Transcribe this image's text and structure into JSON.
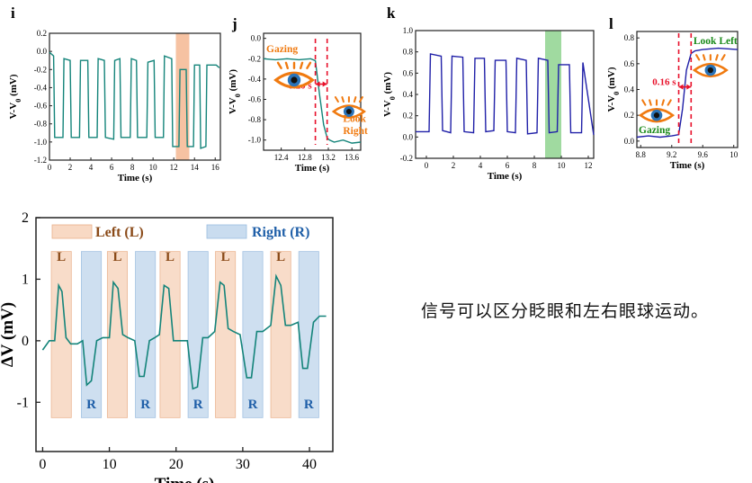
{
  "caption": "信号可以区分眨眼和左右眼球运动。",
  "colors": {
    "teal": "#14847a",
    "navy": "#2020a8",
    "orange_band": "#f5b792",
    "green_band": "#8fd38f",
    "left_box": "#f8d9c4",
    "right_box": "#c9dcef",
    "red": "#e8102a",
    "eye_orange": "#f07a10",
    "left_label": "#8a4a18",
    "right_label": "#1f5fa8",
    "green_text": "#1a8a1a"
  },
  "chart_data": [
    {
      "id": "i",
      "panel_label": "i",
      "type": "line",
      "xlabel": "Time (s)",
      "ylabel": "V-V0 (mV)",
      "xlim": [
        0,
        16.5
      ],
      "ylim": [
        -1.2,
        0.2
      ],
      "xticks": [
        0,
        2,
        4,
        6,
        8,
        10,
        12,
        14,
        16
      ],
      "yticks": [
        0.2,
        0.0,
        -0.2,
        -0.4,
        -0.6,
        -0.8,
        -1.0,
        -1.2
      ],
      "yticklabels": [
        "0.2",
        "0.0",
        "-0.2",
        "-0.4",
        "-0.6",
        "-0.8",
        "-1.0",
        "-1.2"
      ],
      "highlight": [
        12.2,
        13.5
      ],
      "series": [
        {
          "x": [
            0,
            0.4,
            0.5,
            1.3,
            1.4,
            2.0,
            2.1,
            2.9,
            3.0,
            3.7,
            3.8,
            4.6,
            4.7,
            5.3,
            5.4,
            6.2,
            6.3,
            6.8,
            6.9,
            7.8,
            7.9,
            8.4,
            8.5,
            9.4,
            9.5,
            10.1,
            10.2,
            11.0,
            11.1,
            11.8,
            11.9,
            12.5,
            12.6,
            13.2,
            13.3,
            13.9,
            14.0,
            14.5,
            14.6,
            15.1,
            15.2,
            16.0,
            16.1,
            16.4
          ],
          "y": [
            -0.01,
            -0.05,
            -0.95,
            -0.95,
            -0.08,
            -0.1,
            -0.95,
            -0.95,
            -0.1,
            -0.1,
            -0.95,
            -0.95,
            -0.08,
            -0.1,
            -0.95,
            -0.97,
            -0.1,
            -0.08,
            -0.95,
            -0.95,
            -0.08,
            -0.1,
            -0.95,
            -0.95,
            -0.12,
            -0.1,
            -0.95,
            -0.95,
            -0.05,
            -0.08,
            -1.05,
            -1.05,
            -0.2,
            -0.2,
            -1.05,
            -1.05,
            -0.15,
            -0.15,
            -1.07,
            -1.05,
            -0.15,
            -0.15,
            -0.15,
            -0.18
          ]
        }
      ]
    },
    {
      "id": "j",
      "panel_label": "j",
      "type": "line",
      "xlabel": "Time (s)",
      "ylabel": "V-V0 (mV)",
      "xlim": [
        12.1,
        13.75
      ],
      "ylim": [
        -1.1,
        0.05
      ],
      "xticks": [
        12.4,
        12.8,
        13.2,
        13.6
      ],
      "yticks": [
        0.0,
        -0.2,
        -0.4,
        -0.6,
        -0.8,
        -1.0
      ],
      "yticklabels": [
        "0.0",
        "-0.2",
        "-0.4",
        "-0.6",
        "-0.8",
        "-1.0"
      ],
      "markers": [
        12.98,
        13.18
      ],
      "duration_label": "0.20 s",
      "state_start": "Gazing",
      "state_end": "Look Right",
      "series": [
        {
          "x": [
            12.1,
            12.3,
            12.5,
            12.7,
            12.9,
            12.98,
            13.05,
            13.12,
            13.18,
            13.22,
            13.3,
            13.45,
            13.6,
            13.75
          ],
          "y": [
            -0.2,
            -0.21,
            -0.2,
            -0.21,
            -0.2,
            -0.22,
            -0.55,
            -0.85,
            -0.98,
            -1.0,
            -1.02,
            -1.0,
            -1.03,
            -1.02
          ]
        }
      ]
    },
    {
      "id": "k",
      "panel_label": "k",
      "type": "line",
      "xlabel": "Time (s)",
      "ylabel": "V-V0 (mV)",
      "xlim": [
        -0.8,
        12.4
      ],
      "ylim": [
        -0.2,
        1.0
      ],
      "xticks": [
        0,
        2,
        4,
        6,
        8,
        10,
        12
      ],
      "yticks": [
        1.0,
        0.8,
        0.6,
        0.4,
        0.2,
        0.0,
        -0.2
      ],
      "yticklabels": [
        "1.0",
        "0.8",
        "0.6",
        "0.4",
        "0.2",
        "0.0",
        "-0.2"
      ],
      "highlight": [
        8.8,
        10.0
      ],
      "series": [
        {
          "x": [
            -0.8,
            0.2,
            0.3,
            1.1,
            1.2,
            1.8,
            1.9,
            2.7,
            2.8,
            3.5,
            3.6,
            4.3,
            4.4,
            5.0,
            5.1,
            5.9,
            6.0,
            6.6,
            6.7,
            7.4,
            7.5,
            8.2,
            8.3,
            9.0,
            9.1,
            9.7,
            9.8,
            10.6,
            10.7,
            11.5,
            11.6,
            12.4
          ],
          "y": [
            0.05,
            0.05,
            0.78,
            0.76,
            0.06,
            0.04,
            0.76,
            0.75,
            0.05,
            0.04,
            0.74,
            0.74,
            0.05,
            0.06,
            0.72,
            0.72,
            0.05,
            0.04,
            0.74,
            0.72,
            0.03,
            0.04,
            0.74,
            0.72,
            0.04,
            0.05,
            0.68,
            0.68,
            0.04,
            0.04,
            0.7,
            0.02
          ]
        }
      ]
    },
    {
      "id": "l",
      "panel_label": "l",
      "type": "line",
      "xlabel": "Time (s)",
      "ylabel": "V-V0 (mV)",
      "xlim": [
        8.75,
        10.05
      ],
      "ylim": [
        -0.05,
        0.85
      ],
      "xticks": [
        8.8,
        9.2,
        9.6,
        10.0
      ],
      "yticks": [
        0.0,
        0.2,
        0.4,
        0.6,
        0.8
      ],
      "yticklabels": [
        "0.0",
        "0.2",
        "0.4",
        "0.6",
        "0.8"
      ],
      "markers": [
        9.29,
        9.45
      ],
      "duration_label": "0.16 s",
      "state_start": "Gazing",
      "state_end": "Look Left",
      "series": [
        {
          "x": [
            8.75,
            8.9,
            9.05,
            9.2,
            9.29,
            9.34,
            9.39,
            9.45,
            9.5,
            9.6,
            9.8,
            10.05
          ],
          "y": [
            0.03,
            0.04,
            0.03,
            0.04,
            0.05,
            0.25,
            0.55,
            0.68,
            0.7,
            0.71,
            0.72,
            0.71
          ]
        }
      ]
    },
    {
      "id": "main",
      "type": "line",
      "xlabel": "Time (s)",
      "ylabel": "ΔV (mV)",
      "xlim": [
        -1,
        43.5
      ],
      "ylim": [
        -1.8,
        2.0
      ],
      "xticks": [
        0,
        10,
        20,
        30,
        40
      ],
      "yticks": [
        2,
        1,
        0,
        -1
      ],
      "yticklabels": [
        "2",
        "1",
        "0",
        "-1"
      ],
      "legend": [
        {
          "label": "Left (L)",
          "kind": "left"
        },
        {
          "label": "Right (R)",
          "kind": "right"
        }
      ],
      "boxes": [
        {
          "x0": 1.3,
          "x1": 4.3,
          "kind": "left",
          "label": "L"
        },
        {
          "x0": 5.8,
          "x1": 8.8,
          "kind": "right",
          "label": "R"
        },
        {
          "x0": 9.7,
          "x1": 12.7,
          "kind": "left",
          "label": "L"
        },
        {
          "x0": 13.9,
          "x1": 16.9,
          "kind": "right",
          "label": "R"
        },
        {
          "x0": 17.6,
          "x1": 20.6,
          "kind": "left",
          "label": "L"
        },
        {
          "x0": 21.8,
          "x1": 24.8,
          "kind": "right",
          "label": "R"
        },
        {
          "x0": 25.9,
          "x1": 28.9,
          "kind": "left",
          "label": "L"
        },
        {
          "x0": 30.0,
          "x1": 33.0,
          "kind": "right",
          "label": "R"
        },
        {
          "x0": 34.2,
          "x1": 37.2,
          "kind": "left",
          "label": "L"
        },
        {
          "x0": 38.4,
          "x1": 41.4,
          "kind": "right",
          "label": "R"
        }
      ],
      "series": [
        {
          "x": [
            0,
            1,
            1.8,
            2.4,
            2.9,
            3.5,
            4.2,
            5.2,
            6.0,
            6.6,
            7.3,
            8.1,
            9.0,
            10.0,
            10.6,
            11.3,
            12.0,
            12.8,
            13.8,
            14.5,
            15.2,
            16.0,
            16.8,
            17.5,
            18.2,
            18.9,
            19.6,
            20.6,
            21.7,
            22.5,
            23.2,
            24.0,
            24.8,
            25.8,
            26.6,
            27.2,
            27.8,
            28.6,
            29.6,
            30.6,
            31.3,
            32.1,
            33.0,
            34.2,
            35.0,
            35.7,
            36.4,
            37.2,
            38.3,
            39.0,
            39.7,
            40.6,
            41.5,
            42.5
          ],
          "y": [
            -0.15,
            0.0,
            0.0,
            0.9,
            0.8,
            0.05,
            -0.05,
            -0.05,
            0.0,
            -0.72,
            -0.65,
            0.0,
            0.05,
            0.05,
            0.95,
            0.85,
            0.1,
            0.05,
            0.0,
            -0.58,
            -0.58,
            0.0,
            0.05,
            0.1,
            0.9,
            0.85,
            0.0,
            0.0,
            0.0,
            -0.78,
            -0.75,
            0.05,
            0.05,
            0.15,
            0.95,
            0.9,
            0.2,
            0.15,
            0.1,
            -0.6,
            -0.6,
            0.15,
            0.15,
            0.25,
            1.05,
            0.9,
            0.25,
            0.25,
            0.3,
            -0.45,
            -0.45,
            0.3,
            0.4,
            0.4
          ]
        }
      ]
    }
  ]
}
